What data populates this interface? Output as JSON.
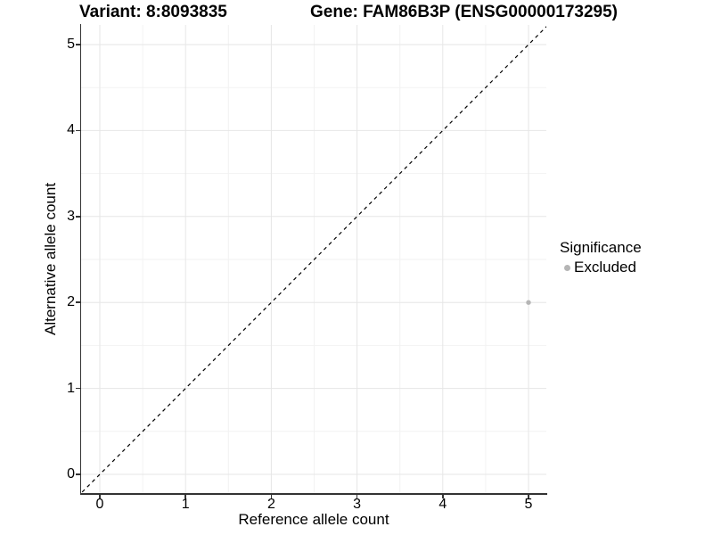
{
  "title": {
    "variant": "Variant: 8:8093835",
    "gene": "Gene: FAM86B3P (ENSG00000173295)"
  },
  "axes": {
    "x_label": "Reference allele count",
    "y_label": "Alternative allele count"
  },
  "legend": {
    "title": "Significance",
    "items": [
      {
        "label": "Excluded",
        "color": "#b5b5b5"
      }
    ]
  },
  "colors": {
    "background": "#ffffff",
    "grid_major": "#e6e6e6",
    "grid_minor": "#f2f2f2",
    "axis_line": "#333333",
    "reference_line": "#000000",
    "point": "#b5b5b5",
    "text": "#000000"
  },
  "chart_data": {
    "type": "scatter",
    "title": "Variant: 8:8093835  |  Gene: FAM86B3P (ENSG00000173295)",
    "xlabel": "Reference allele count",
    "ylabel": "Alternative allele count",
    "xlim": [
      -0.25,
      5.25
    ],
    "ylim": [
      -0.25,
      5.25
    ],
    "x_ticks": [
      0,
      1,
      2,
      3,
      4,
      5
    ],
    "y_ticks": [
      0,
      1,
      2,
      3,
      4,
      5
    ],
    "grid": "major+minor",
    "legend_position": "right",
    "reference_line": {
      "style": "dashed",
      "slope": 1,
      "intercept": 0,
      "color": "#000000"
    },
    "series": [
      {
        "name": "Excluded",
        "color": "#b5b5b5",
        "points": [
          {
            "x": 5,
            "y": 2
          }
        ]
      }
    ]
  }
}
